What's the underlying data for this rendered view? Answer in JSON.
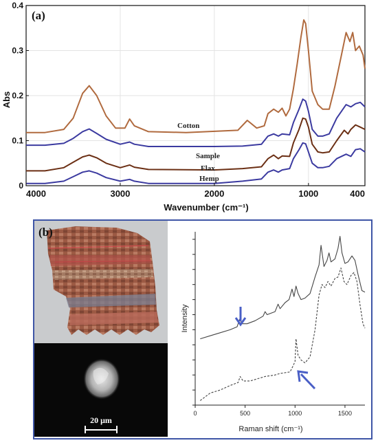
{
  "panels": {
    "a_label": "(a)",
    "b_label": "(b)"
  },
  "scale_bar_label": "20 μm",
  "colors": {
    "cotton": "#b06a3e",
    "sample": "#3b3aa0",
    "flax": "#6b2f14",
    "hemp": "#3b3aa0",
    "frame_b": "#3e55a6",
    "arrow": "#4a5fc6",
    "raman_line": "#444444"
  },
  "chart_data": [
    {
      "type": "line",
      "ylabel": "Abs",
      "xlabel": "Wavenumber  (cm⁻¹)",
      "xlim": [
        4000,
        400
      ],
      "ylim": [
        0,
        0.4
      ],
      "x_reversed": true,
      "x_ticks": [
        4000,
        3000,
        2000,
        1000,
        400
      ],
      "y_ticks": [
        "0",
        "0.1",
        "0.2",
        "0.3",
        "0.4"
      ],
      "grid": true,
      "series": [
        {
          "name": "Cotton",
          "color_key": "cotton",
          "points": [
            [
              4000,
              0.118
            ],
            [
              3800,
              0.118
            ],
            [
              3600,
              0.125
            ],
            [
              3500,
              0.15
            ],
            [
              3400,
              0.205
            ],
            [
              3330,
              0.222
            ],
            [
              3250,
              0.2
            ],
            [
              3150,
              0.155
            ],
            [
              3050,
              0.128
            ],
            [
              2950,
              0.128
            ],
            [
              2900,
              0.148
            ],
            [
              2850,
              0.133
            ],
            [
              2700,
              0.12
            ],
            [
              2300,
              0.118
            ],
            [
              1750,
              0.123
            ],
            [
              1650,
              0.145
            ],
            [
              1550,
              0.128
            ],
            [
              1470,
              0.133
            ],
            [
              1430,
              0.16
            ],
            [
              1370,
              0.17
            ],
            [
              1320,
              0.163
            ],
            [
              1280,
              0.172
            ],
            [
              1240,
              0.155
            ],
            [
              1200,
              0.17
            ],
            [
              1160,
              0.215
            ],
            [
              1120,
              0.27
            ],
            [
              1080,
              0.33
            ],
            [
              1050,
              0.368
            ],
            [
              1030,
              0.36
            ],
            [
              1000,
              0.3
            ],
            [
              960,
              0.21
            ],
            [
              900,
              0.18
            ],
            [
              850,
              0.17
            ],
            [
              780,
              0.17
            ],
            [
              720,
              0.22
            ],
            [
              650,
              0.29
            ],
            [
              600,
              0.34
            ],
            [
              560,
              0.32
            ],
            [
              530,
              0.34
            ],
            [
              500,
              0.3
            ],
            [
              460,
              0.31
            ],
            [
              420,
              0.29
            ],
            [
              400,
              0.26
            ]
          ]
        },
        {
          "name": "Sample",
          "color_key": "sample",
          "points": [
            [
              4000,
              0.09
            ],
            [
              3800,
              0.09
            ],
            [
              3600,
              0.094
            ],
            [
              3500,
              0.105
            ],
            [
              3400,
              0.12
            ],
            [
              3330,
              0.126
            ],
            [
              3250,
              0.116
            ],
            [
              3150,
              0.103
            ],
            [
              3000,
              0.092
            ],
            [
              2900,
              0.097
            ],
            [
              2850,
              0.092
            ],
            [
              2700,
              0.087
            ],
            [
              2000,
              0.087
            ],
            [
              1700,
              0.088
            ],
            [
              1500,
              0.092
            ],
            [
              1430,
              0.11
            ],
            [
              1370,
              0.115
            ],
            [
              1320,
              0.11
            ],
            [
              1280,
              0.115
            ],
            [
              1200,
              0.113
            ],
            [
              1160,
              0.14
            ],
            [
              1100,
              0.17
            ],
            [
              1060,
              0.192
            ],
            [
              1030,
              0.188
            ],
            [
              1000,
              0.165
            ],
            [
              960,
              0.125
            ],
            [
              900,
              0.11
            ],
            [
              850,
              0.11
            ],
            [
              780,
              0.115
            ],
            [
              700,
              0.15
            ],
            [
              600,
              0.18
            ],
            [
              550,
              0.175
            ],
            [
              500,
              0.182
            ],
            [
              450,
              0.185
            ],
            [
              400,
              0.175
            ]
          ]
        },
        {
          "name": "Flax",
          "color_key": "flax",
          "points": [
            [
              4000,
              0.033
            ],
            [
              3800,
              0.033
            ],
            [
              3600,
              0.04
            ],
            [
              3500,
              0.052
            ],
            [
              3400,
              0.064
            ],
            [
              3330,
              0.068
            ],
            [
              3250,
              0.062
            ],
            [
              3150,
              0.05
            ],
            [
              3000,
              0.04
            ],
            [
              2900,
              0.046
            ],
            [
              2850,
              0.041
            ],
            [
              2700,
              0.036
            ],
            [
              2000,
              0.035
            ],
            [
              1700,
              0.038
            ],
            [
              1500,
              0.042
            ],
            [
              1430,
              0.06
            ],
            [
              1370,
              0.068
            ],
            [
              1320,
              0.06
            ],
            [
              1280,
              0.066
            ],
            [
              1200,
              0.065
            ],
            [
              1160,
              0.095
            ],
            [
              1100,
              0.125
            ],
            [
              1060,
              0.15
            ],
            [
              1030,
              0.148
            ],
            [
              1000,
              0.13
            ],
            [
              960,
              0.092
            ],
            [
              900,
              0.075
            ],
            [
              850,
              0.073
            ],
            [
              780,
              0.075
            ],
            [
              700,
              0.1
            ],
            [
              620,
              0.123
            ],
            [
              580,
              0.115
            ],
            [
              550,
              0.125
            ],
            [
              500,
              0.135
            ],
            [
              450,
              0.13
            ],
            [
              400,
              0.125
            ]
          ]
        },
        {
          "name": "Hemp",
          "color_key": "hemp",
          "points": [
            [
              4000,
              0.005
            ],
            [
              3800,
              0.005
            ],
            [
              3600,
              0.01
            ],
            [
              3500,
              0.02
            ],
            [
              3400,
              0.03
            ],
            [
              3330,
              0.033
            ],
            [
              3250,
              0.028
            ],
            [
              3150,
              0.018
            ],
            [
              3000,
              0.01
            ],
            [
              2900,
              0.014
            ],
            [
              2850,
              0.01
            ],
            [
              2700,
              0.005
            ],
            [
              2000,
              0.005
            ],
            [
              1700,
              0.01
            ],
            [
              1500,
              0.015
            ],
            [
              1430,
              0.03
            ],
            [
              1370,
              0.035
            ],
            [
              1320,
              0.03
            ],
            [
              1280,
              0.035
            ],
            [
              1200,
              0.038
            ],
            [
              1160,
              0.06
            ],
            [
              1100,
              0.08
            ],
            [
              1060,
              0.095
            ],
            [
              1030,
              0.093
            ],
            [
              1000,
              0.075
            ],
            [
              960,
              0.05
            ],
            [
              900,
              0.04
            ],
            [
              850,
              0.04
            ],
            [
              780,
              0.043
            ],
            [
              700,
              0.06
            ],
            [
              600,
              0.07
            ],
            [
              550,
              0.065
            ],
            [
              500,
              0.08
            ],
            [
              450,
              0.082
            ],
            [
              400,
              0.075
            ]
          ]
        }
      ]
    },
    {
      "type": "line",
      "ylabel": "Intensity",
      "xlabel": "Raman shift  (cm⁻¹)",
      "xlim": [
        0,
        1700
      ],
      "x_ticks": [
        0,
        500,
        1000,
        1500
      ],
      "y_ticks": [
        0,
        1,
        2,
        3,
        4,
        5,
        6,
        7,
        8,
        9,
        10,
        11
      ],
      "ylim": [
        0,
        11.5
      ],
      "series": [
        {
          "style": "solid",
          "points": [
            [
              50,
              4.4
            ],
            [
              150,
              4.6
            ],
            [
              250,
              4.8
            ],
            [
              350,
              5.0
            ],
            [
              420,
              5.2
            ],
            [
              445,
              5.7
            ],
            [
              470,
              5.4
            ],
            [
              520,
              5.4
            ],
            [
              600,
              5.6
            ],
            [
              680,
              5.9
            ],
            [
              700,
              6.2
            ],
            [
              720,
              6.0
            ],
            [
              800,
              6.2
            ],
            [
              830,
              6.7
            ],
            [
              850,
              6.4
            ],
            [
              900,
              6.8
            ],
            [
              940,
              7.0
            ],
            [
              970,
              7.7
            ],
            [
              990,
              7.2
            ],
            [
              1010,
              7.9
            ],
            [
              1030,
              7.4
            ],
            [
              1060,
              7.0
            ],
            [
              1100,
              7.1
            ],
            [
              1150,
              7.4
            ],
            [
              1200,
              8.5
            ],
            [
              1240,
              9.3
            ],
            [
              1260,
              10.6
            ],
            [
              1290,
              9.2
            ],
            [
              1320,
              9.6
            ],
            [
              1340,
              10.1
            ],
            [
              1360,
              9.5
            ],
            [
              1400,
              9.7
            ],
            [
              1430,
              10.4
            ],
            [
              1450,
              11.2
            ],
            [
              1470,
              10.1
            ],
            [
              1500,
              9.4
            ],
            [
              1530,
              9.5
            ],
            [
              1570,
              9.9
            ],
            [
              1600,
              9.6
            ],
            [
              1630,
              8.7
            ],
            [
              1670,
              7.6
            ],
            [
              1700,
              7.5
            ]
          ]
        },
        {
          "style": "dashed",
          "points": [
            [
              50,
              0.3
            ],
            [
              150,
              0.8
            ],
            [
              250,
              1.0
            ],
            [
              350,
              1.3
            ],
            [
              430,
              1.5
            ],
            [
              450,
              1.9
            ],
            [
              480,
              1.6
            ],
            [
              550,
              1.6
            ],
            [
              650,
              1.8
            ],
            [
              700,
              1.9
            ],
            [
              800,
              2.0
            ],
            [
              850,
              2.1
            ],
            [
              950,
              2.2
            ],
            [
              980,
              2.6
            ],
            [
              1000,
              2.9
            ],
            [
              1010,
              4.4
            ],
            [
              1030,
              3.3
            ],
            [
              1060,
              3.0
            ],
            [
              1100,
              2.8
            ],
            [
              1150,
              3.2
            ],
            [
              1200,
              5.0
            ],
            [
              1240,
              7.3
            ],
            [
              1270,
              8.0
            ],
            [
              1300,
              7.8
            ],
            [
              1330,
              8.2
            ],
            [
              1360,
              7.9
            ],
            [
              1400,
              8.4
            ],
            [
              1430,
              8.5
            ],
            [
              1460,
              9.1
            ],
            [
              1490,
              8.2
            ],
            [
              1520,
              8.0
            ],
            [
              1560,
              8.6
            ],
            [
              1590,
              8.8
            ],
            [
              1620,
              8.2
            ],
            [
              1650,
              6.7
            ],
            [
              1680,
              5.4
            ],
            [
              1700,
              5.1
            ]
          ]
        }
      ]
    }
  ]
}
